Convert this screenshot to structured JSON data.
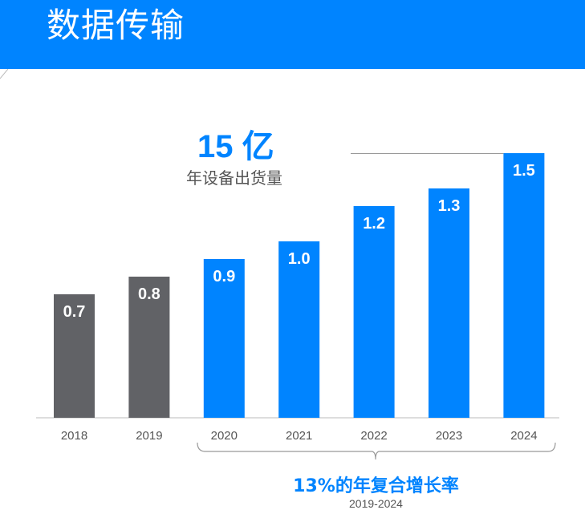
{
  "header": {
    "title": "数据传输"
  },
  "callout": {
    "headline": "15 亿",
    "subline": "年设备出货量"
  },
  "footer": {
    "cagr": "13%的年复合增长率",
    "range": "2019-2024"
  },
  "colors": {
    "brand": "#0084ff",
    "past": "#616266",
    "projected": "#0084ff"
  },
  "chart_data": {
    "type": "bar",
    "categories": [
      "2018",
      "2019",
      "2020",
      "2021",
      "2022",
      "2023",
      "2024"
    ],
    "values": [
      0.7,
      0.8,
      0.9,
      1.0,
      1.2,
      1.3,
      1.5
    ],
    "labels": [
      "0.7",
      "0.8",
      "0.9",
      "1.0",
      "1.2",
      "1.3",
      "1.5"
    ],
    "bar_colors": [
      "#616266",
      "#616266",
      "#0084ff",
      "#0084ff",
      "#0084ff",
      "#0084ff",
      "#0084ff"
    ],
    "title": "",
    "xlabel": "",
    "ylabel": "",
    "ylim": [
      0,
      1.5
    ],
    "grid": false
  }
}
